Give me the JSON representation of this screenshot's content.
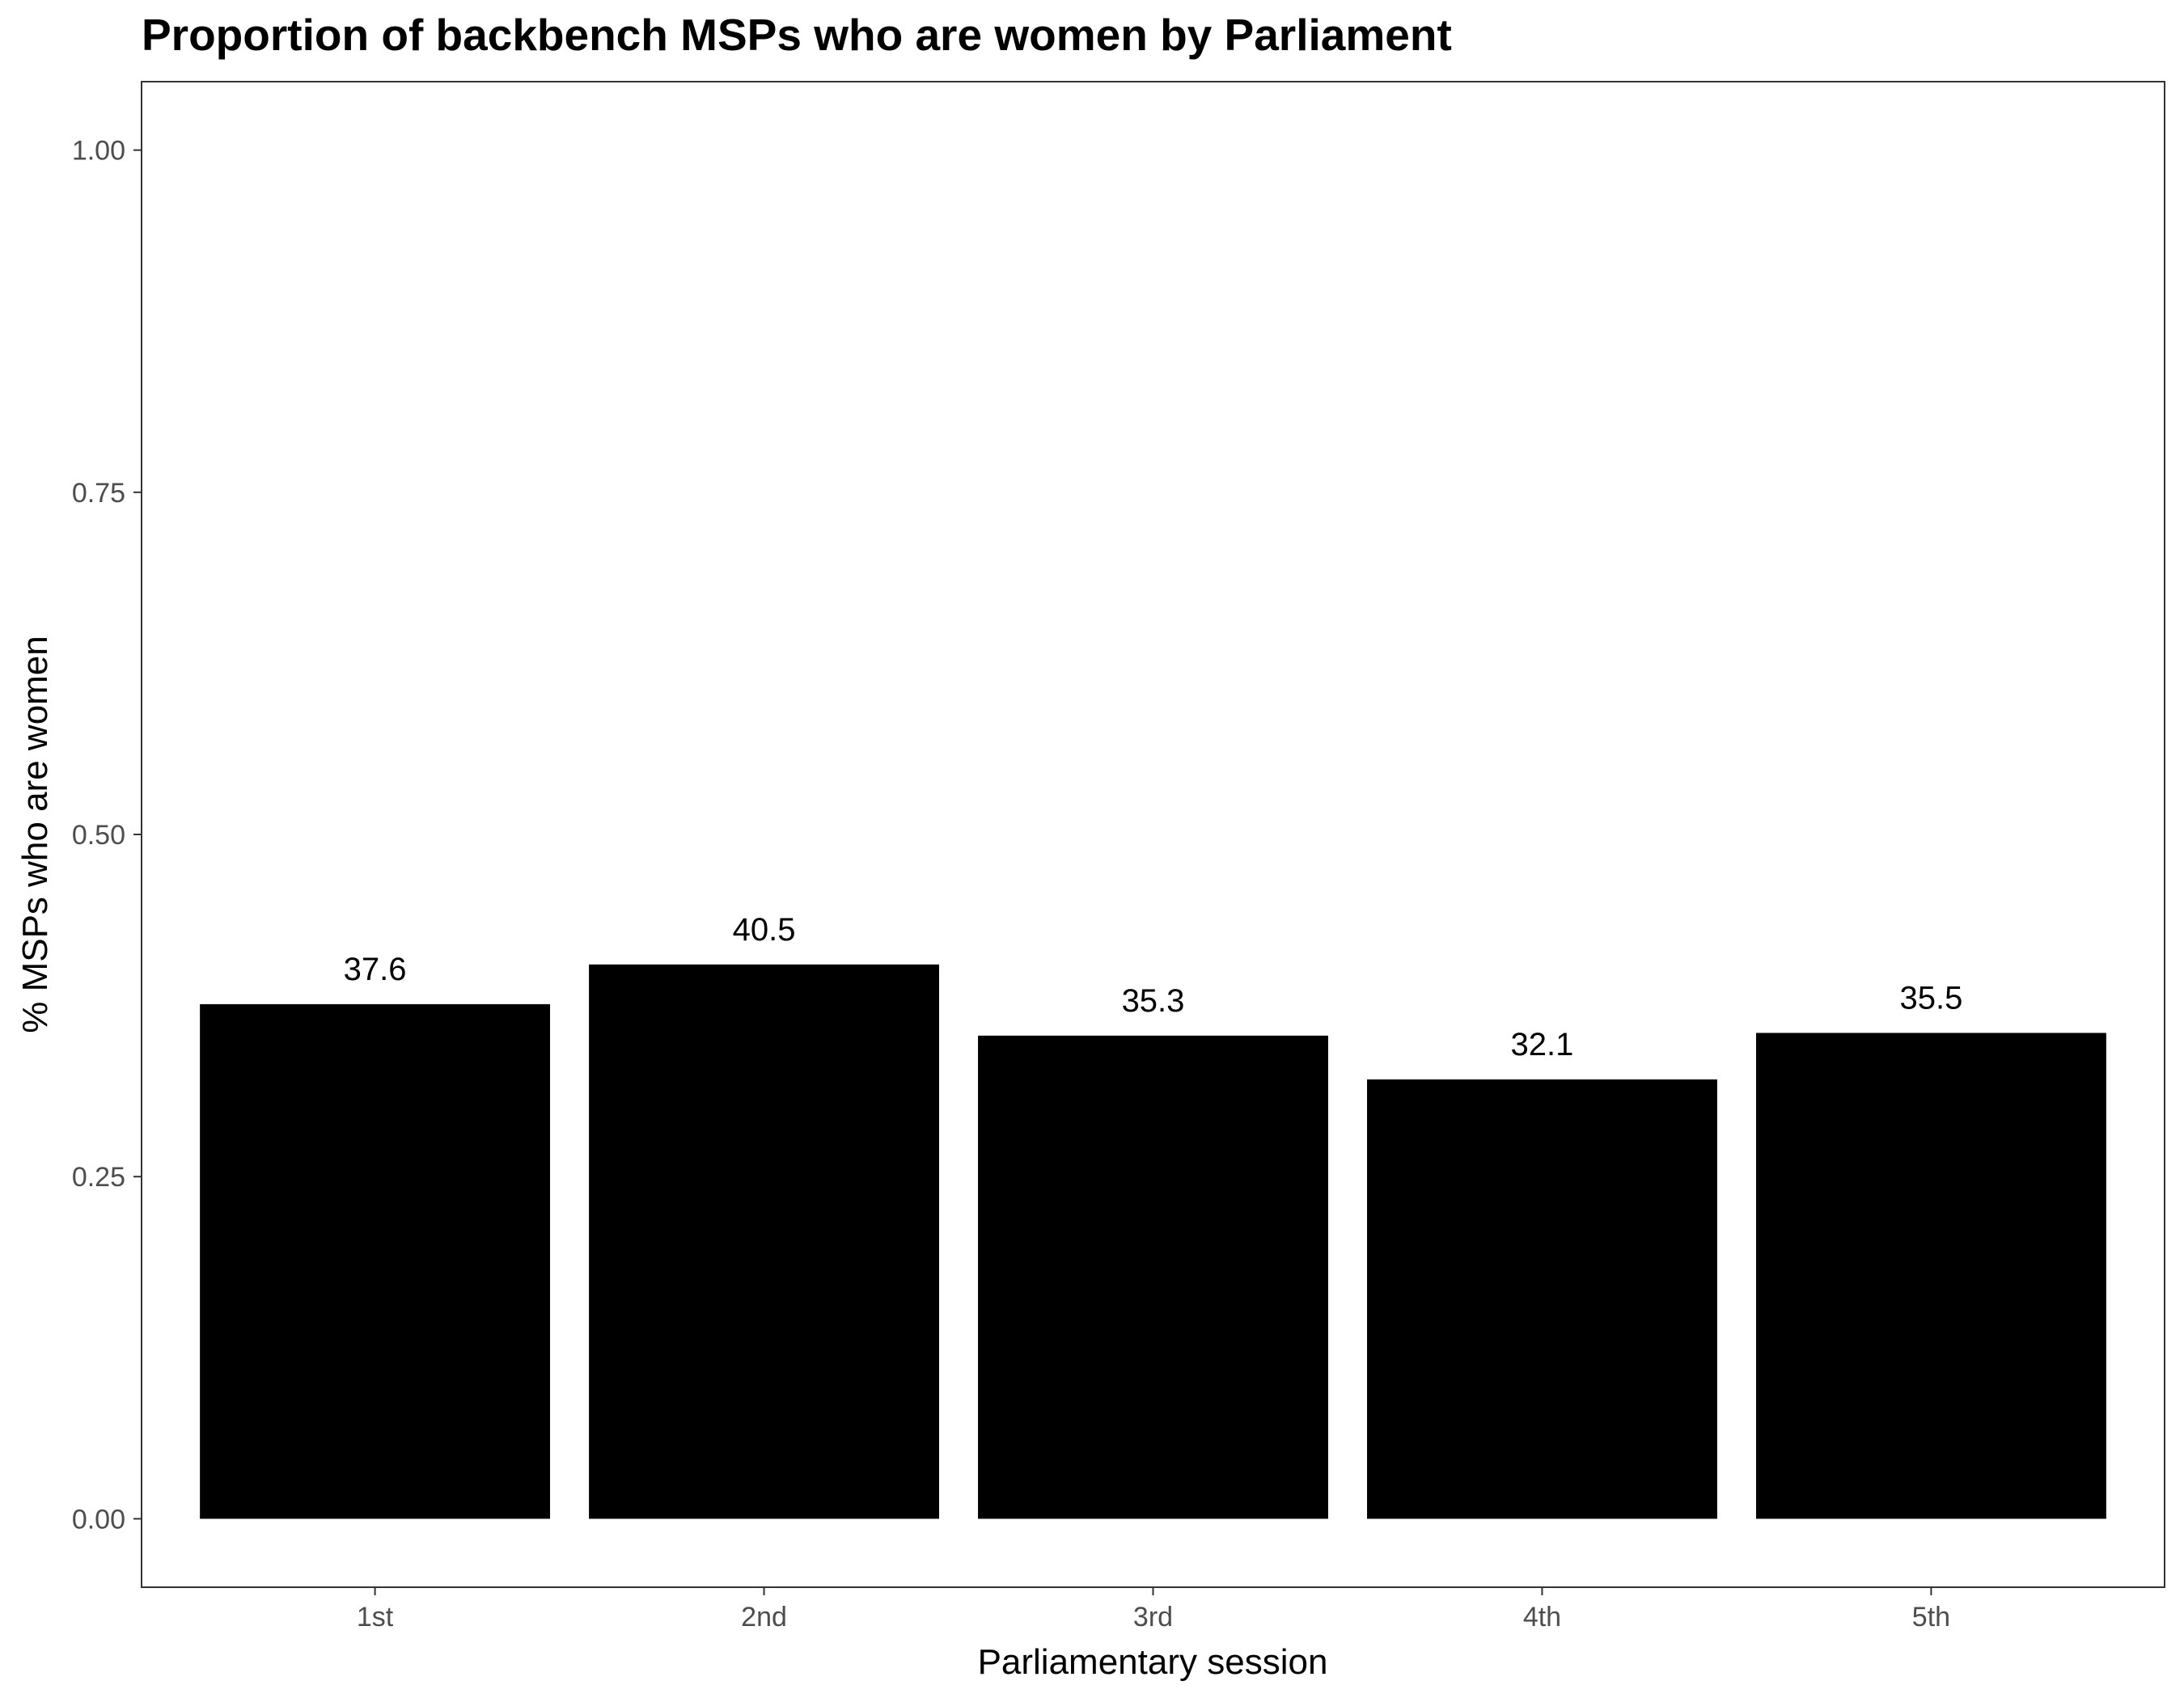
{
  "chart_data": {
    "type": "bar",
    "title": "Proportion of backbench MSPs who are women by Parliament",
    "xlabel": "Parliamentary session",
    "ylabel": "% MSPs who are women",
    "categories": [
      "1st",
      "2nd",
      "3rd",
      "4th",
      "5th"
    ],
    "values": [
      0.376,
      0.405,
      0.353,
      0.321,
      0.355
    ],
    "data_labels": [
      "37.6",
      "40.5",
      "35.3",
      "32.1",
      "35.5"
    ],
    "ylim": [
      -0.05,
      1.05
    ],
    "yticks": [
      0.0,
      0.25,
      0.5,
      0.75,
      1.0
    ],
    "ytick_labels": [
      "0.00",
      "0.25",
      "0.50",
      "0.75",
      "1.00"
    ],
    "grid": false,
    "bar_color": "#000000",
    "panel_border_color": "#333333"
  }
}
